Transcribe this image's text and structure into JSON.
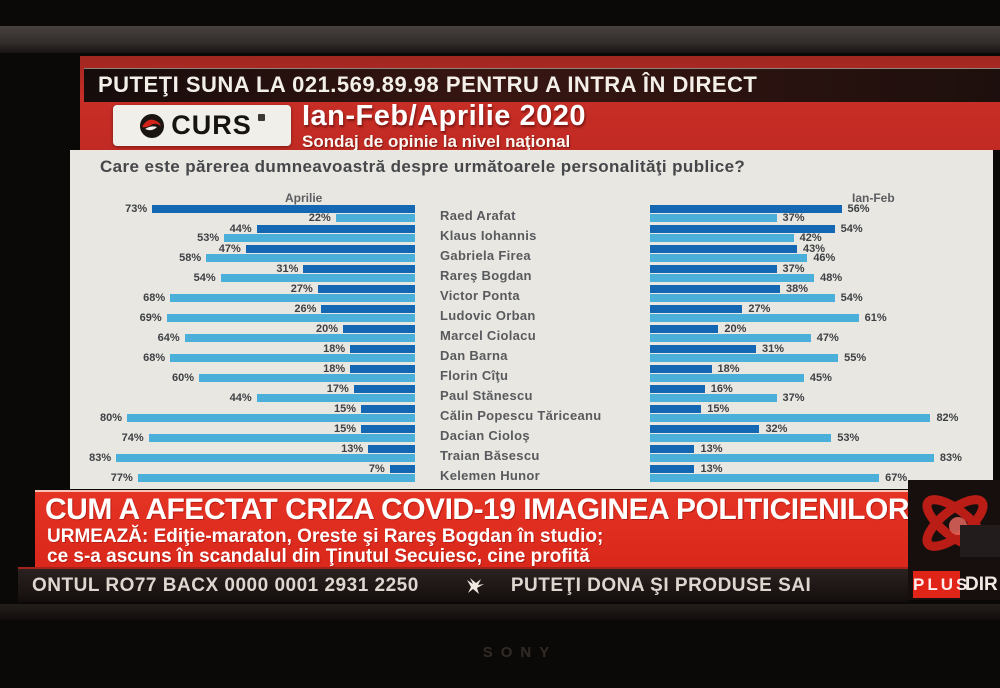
{
  "top_banner": {
    "text": "PUTEŢI SUNA LA 021.569.89.98 PENTRU A INTRA ÎN DIRECT"
  },
  "header": {
    "logo_text": "CURS",
    "title": "Ian-Feb/Aprilie 2020",
    "subtitle": "Sondaj de opinie la nivel naţional"
  },
  "chart_data": {
    "type": "bar",
    "orientation": "horizontal-butterfly",
    "title": "Care este părerea dumneavoastră despre următoarele personalităţi publice?",
    "panels": [
      {
        "label": "Aprilie",
        "align": "right"
      },
      {
        "label": "Ian-Feb",
        "align": "left"
      }
    ],
    "unit": "%",
    "bar_colors": {
      "dark": "#1467b2",
      "light": "#4ab0da"
    },
    "categories": [
      "Raed Arafat",
      "Klaus Iohannis",
      "Gabriela Firea",
      "Rareş Bogdan",
      "Victor Ponta",
      "Ludovic Orban",
      "Marcel Ciolacu",
      "Dan Barna",
      "Florin Cîţu",
      "Paul Stănescu",
      "Călin Popescu Tăriceanu",
      "Dacian Cioloş",
      "Traian Băsescu",
      "Kelemen Hunor"
    ],
    "series": [
      {
        "name": "Aprilie - bara albastru inchis",
        "panel": "Aprilie",
        "color": "#1467b2",
        "values": [
          73,
          44,
          47,
          31,
          27,
          26,
          20,
          18,
          18,
          17,
          15,
          15,
          13,
          7
        ]
      },
      {
        "name": "Aprilie - bara albastru deschis",
        "panel": "Aprilie",
        "color": "#4ab0da",
        "values": [
          22,
          53,
          58,
          54,
          68,
          69,
          64,
          68,
          60,
          44,
          80,
          74,
          83,
          77
        ]
      },
      {
        "name": "Ian-Feb - bara albastru inchis",
        "panel": "Ian-Feb",
        "color": "#1467b2",
        "values": [
          56,
          54,
          43,
          37,
          38,
          27,
          20,
          31,
          18,
          16,
          15,
          32,
          13,
          13
        ]
      },
      {
        "name": "Ian-Feb - bara albastru deschis",
        "panel": "Ian-Feb",
        "color": "#4ab0da",
        "values": [
          37,
          42,
          46,
          48,
          54,
          61,
          47,
          55,
          45,
          37,
          82,
          53,
          83,
          67
        ]
      }
    ]
  },
  "lower_third": {
    "headline": "CUM A AFECTAT CRIZA COVID-19 IMAGINEA POLITICIENILOR",
    "next_line1": "URMEAZĂ: Ediţie-maraton, Oreste şi Rareş Bogdan în studio;",
    "next_line2": "ce s-a ascuns în scandalul din Ţinutul Secuiesc, cine profită"
  },
  "ticker": {
    "left_text": "ONTUL RO77 BACX 0000 0001 2931 2250",
    "right_text": "PUTEŢI DONA ŞI PRODUSE SAI",
    "plus_label": "PLUS",
    "direct_label": "DIR"
  },
  "tv": {
    "brand": "SONY"
  },
  "colors": {
    "header_red": "#c12a23",
    "lower_third_red": "#dd2a1e",
    "badge_red": "#e02417",
    "panel_bg": "#e9e7e2",
    "bar_dark_blue": "#1467b2",
    "bar_light_blue": "#4ab0da"
  }
}
